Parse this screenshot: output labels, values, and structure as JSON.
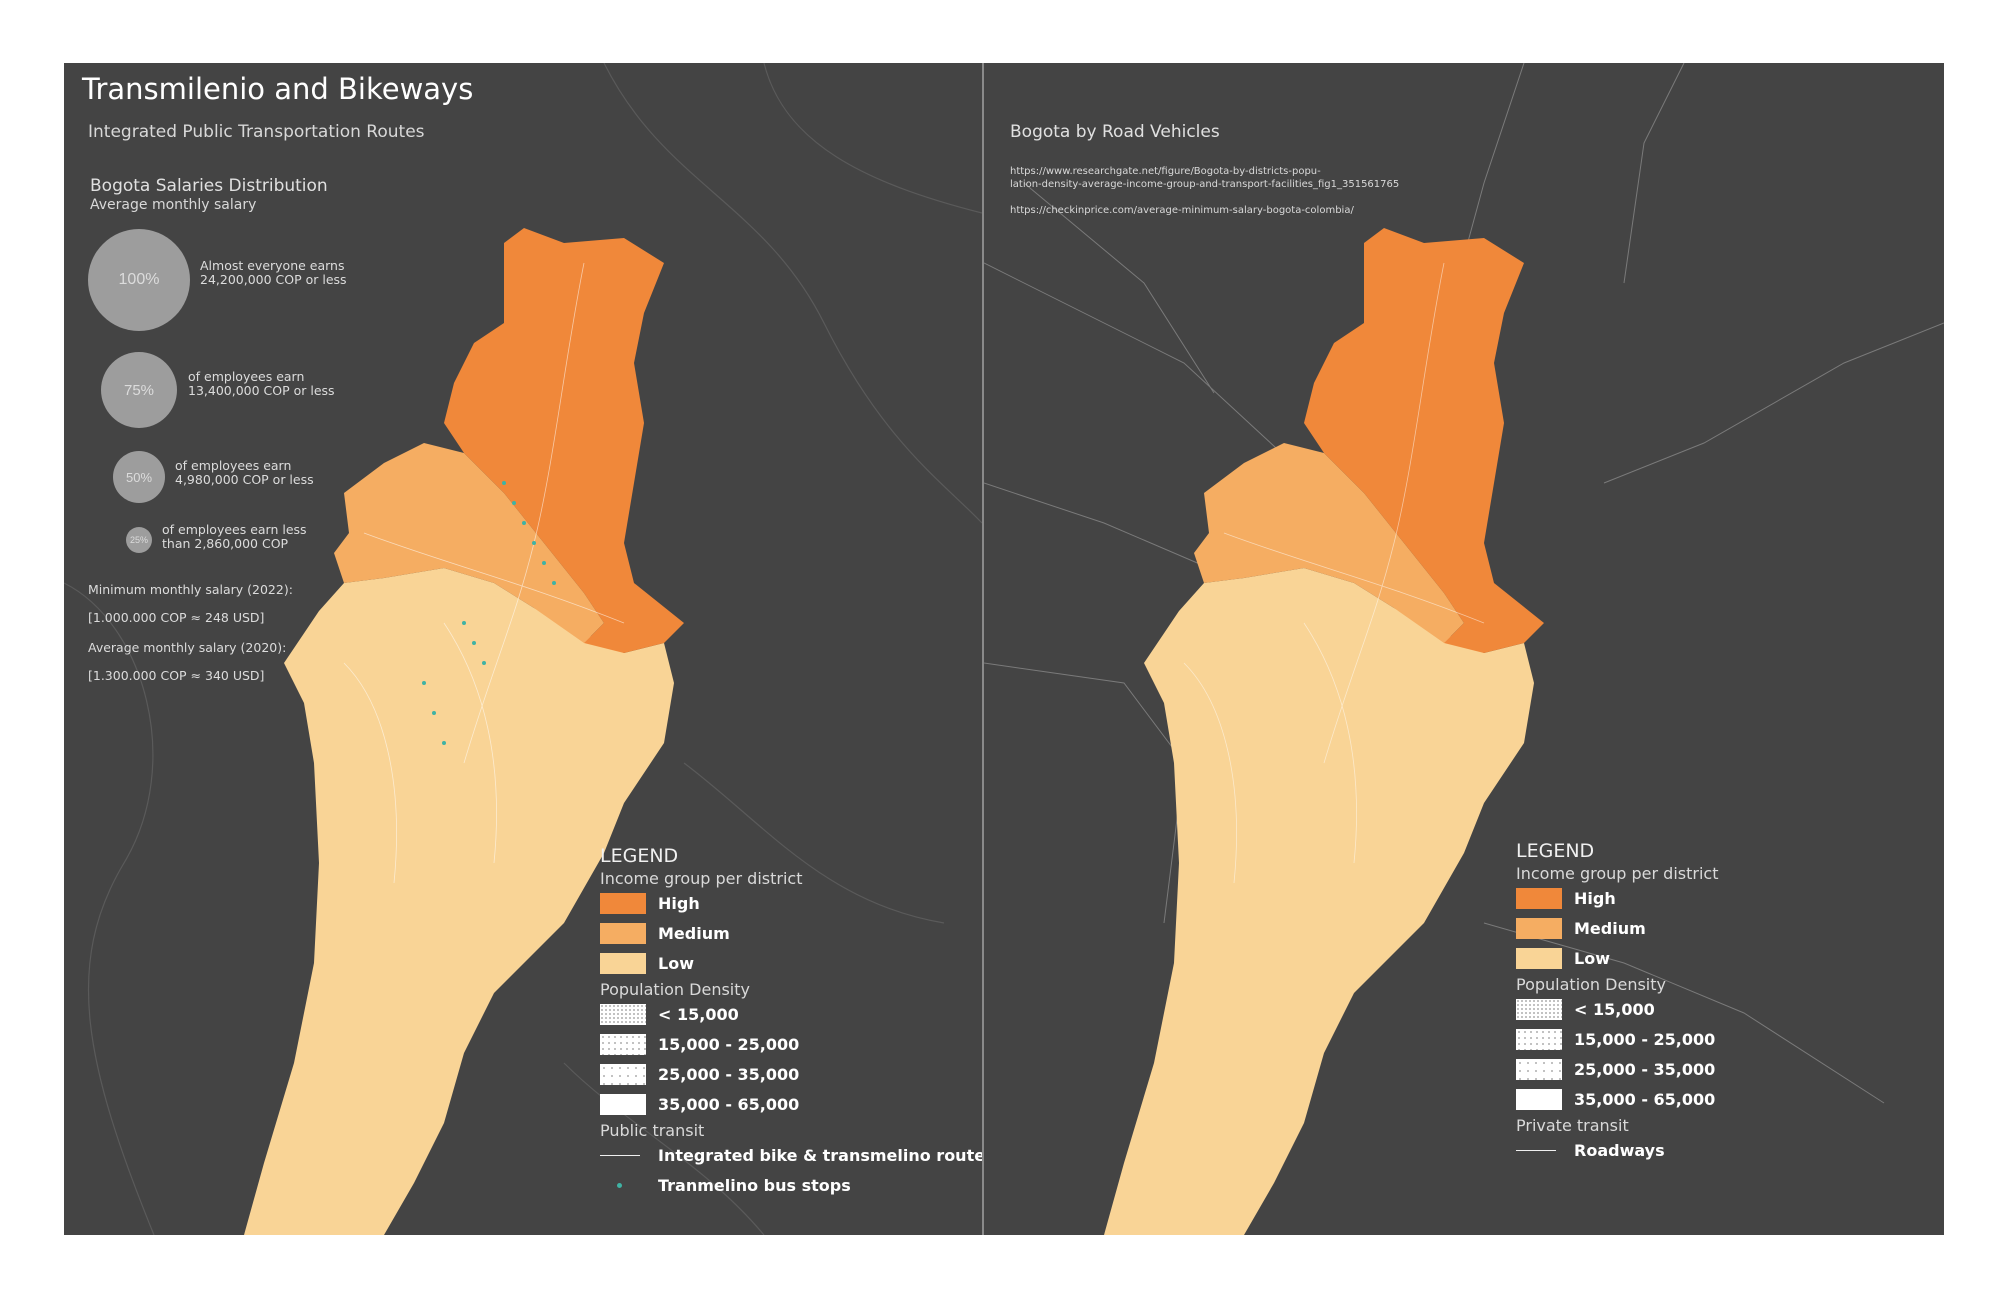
{
  "left_map": {
    "title": "Transmilenio and Bikeways",
    "subtitle": "Integrated Public Transportation Routes",
    "salary": {
      "heading": "Bogota Salaries Distribution",
      "subheading": "Average monthly salary",
      "items": [
        {
          "pct": "100%",
          "line1": "Almost everyone earns",
          "line2": "24,200,000 COP or less"
        },
        {
          "pct": "75%",
          "line1": "of employees earn",
          "line2": "13,400,000 COP or less"
        },
        {
          "pct": "50%",
          "line1": "of employees earn",
          "line2": "4,980,000 COP or less"
        },
        {
          "pct": "25%",
          "line1": "of employees earn less",
          "line2": "than 2,860,000 COP"
        }
      ],
      "min_label": "Minimum monthly salary (2022):",
      "min_value": "[1.000.000 COP ≈ 248 USD]",
      "avg_label": "Average monthly salary (2020):",
      "avg_value": "[1.300.000 COP ≈ 340 USD]"
    },
    "legend": {
      "title": "LEGEND",
      "income_heading": "Income group per district",
      "income": [
        "High",
        "Medium",
        "Low"
      ],
      "density_heading": "Population Density",
      "density": [
        "< 15,000",
        "15,000 - 25,000",
        "25,000 - 35,000",
        "35,000 - 65,000"
      ],
      "transit_heading": "Public transit",
      "transit_line": "Integrated bike & transmelino routes",
      "transit_stop": "Tranmelino bus stops"
    }
  },
  "right_map": {
    "title": "Bogota by Road Vehicles",
    "source1_line1": "https://www.researchgate.net/figure/Bogota-by-districts-popu-",
    "source1_line2": "lation-density-average-income-group-and-transport-facilities_fig1_351561765",
    "source2": "https://checkinprice.com/average-minimum-salary-bogota-colombia/",
    "legend": {
      "title": "LEGEND",
      "income_heading": "Income group per district",
      "income": [
        "High",
        "Medium",
        "Low"
      ],
      "density_heading": "Population Density",
      "density": [
        "< 15,000",
        "15,000 - 25,000",
        "25,000 - 35,000",
        "35,000 - 65,000"
      ],
      "transit_heading": "Private transit",
      "transit_line": "Roadways"
    }
  },
  "colors": {
    "background": "#444444",
    "high": "#f0883a",
    "medium": "#f5ad62",
    "low": "#f9d496",
    "bus_stop": "#3fb3a4"
  }
}
